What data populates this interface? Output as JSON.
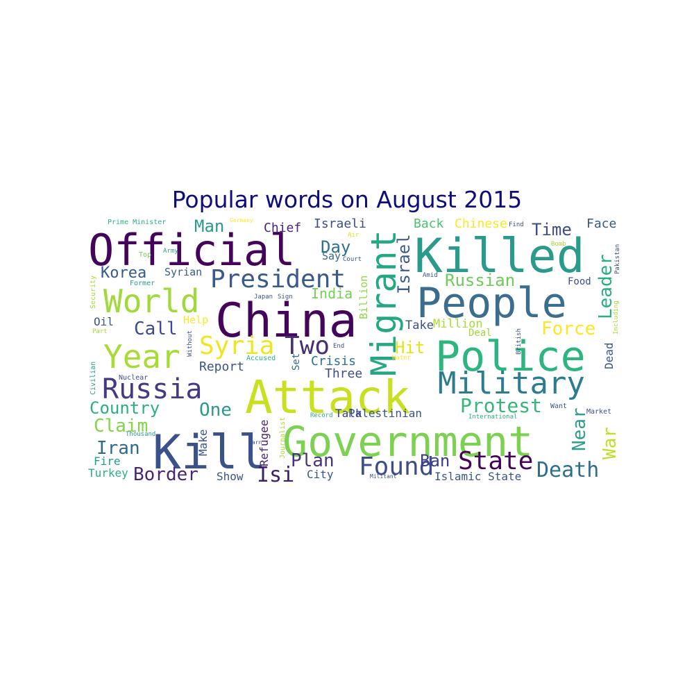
{
  "title": "Popular words on August 2015",
  "words": [
    {
      "text": "Official",
      "color": "#44045a"
    },
    {
      "text": "Killed",
      "color": "#2a9a8a"
    },
    {
      "text": "China",
      "color": "#44045a"
    },
    {
      "text": "People",
      "color": "#3b6e8e"
    },
    {
      "text": "Police",
      "color": "#2cb57f"
    },
    {
      "text": "Attack",
      "color": "#c9e020"
    },
    {
      "text": "Government",
      "color": "#7cd250"
    },
    {
      "text": "Kill",
      "color": "#3b518b"
    },
    {
      "text": "Migrant",
      "color": "#24a884"
    },
    {
      "text": "Military",
      "color": "#2b7c8e"
    },
    {
      "text": "World",
      "color": "#9fda3a"
    },
    {
      "text": "Year",
      "color": "#a8db34"
    },
    {
      "text": "Russia",
      "color": "#443983"
    },
    {
      "text": "President",
      "color": "#3b5a8c"
    },
    {
      "text": "Syria",
      "color": "#f2e51d"
    },
    {
      "text": "Two",
      "color": "#472e7c"
    },
    {
      "text": "State",
      "color": "#44045a"
    },
    {
      "text": "Found",
      "color": "#3e4c8a"
    },
    {
      "text": "Death",
      "color": "#2e6e8e"
    },
    {
      "text": "Country",
      "color": "#2ab07f"
    },
    {
      "text": "Leader",
      "color": "#28ae80"
    },
    {
      "text": "Force",
      "color": "#fde725"
    },
    {
      "text": "Protest",
      "color": "#35b779"
    },
    {
      "text": "Border",
      "color": "#482677"
    },
    {
      "text": "Israel",
      "color": "#3b5b8c"
    },
    {
      "text": "Russian",
      "color": "#6ccd5a"
    },
    {
      "text": "War",
      "color": "#c0df25"
    },
    {
      "text": "Near",
      "color": "#2e9e8a"
    },
    {
      "text": "Claim",
      "color": "#85d44a"
    },
    {
      "text": "Iran",
      "color": "#31688e"
    },
    {
      "text": "Korea",
      "color": "#375a8c"
    },
    {
      "text": "Call",
      "color": "#3e4a89"
    },
    {
      "text": "Isi",
      "color": "#3b1f6a"
    },
    {
      "text": "Plan",
      "color": "#46337f"
    },
    {
      "text": "Ban",
      "color": "#3b3d85"
    },
    {
      "text": "One",
      "color": "#2a9a8a"
    },
    {
      "text": "Day",
      "color": "#2c728e"
    },
    {
      "text": "Time",
      "color": "#3e4a89"
    },
    {
      "text": "Man",
      "color": "#2a9a8a"
    },
    {
      "text": "Hit",
      "color": "#e5e419"
    },
    {
      "text": "Crisis",
      "color": "#2d718e"
    },
    {
      "text": "India",
      "color": "#75d054"
    },
    {
      "text": "Report",
      "color": "#3b528b"
    },
    {
      "text": "Three",
      "color": "#3e4a89"
    },
    {
      "text": "Dead",
      "color": "#3a548c"
    },
    {
      "text": "Israeli",
      "color": "#3e4c8a"
    },
    {
      "text": "Chief",
      "color": "#46247a"
    },
    {
      "text": "Back",
      "color": "#4ac16d"
    },
    {
      "text": "Chinese",
      "color": "#fde725"
    },
    {
      "text": "Face",
      "color": "#39568c"
    },
    {
      "text": "Million",
      "color": "#a8db34"
    },
    {
      "text": "Take",
      "color": "#3e4c8a"
    },
    {
      "text": "Palestinian",
      "color": "#3b528b"
    },
    {
      "text": "Talk",
      "color": "#3b3d85"
    },
    {
      "text": "Islamic State",
      "color": "#3a548c"
    },
    {
      "text": "Show",
      "color": "#3b528b"
    },
    {
      "text": "City",
      "color": "#39568c"
    },
    {
      "text": "Turkey",
      "color": "#2ab07f"
    },
    {
      "text": "Fire",
      "color": "#1f9e89"
    },
    {
      "text": "Oil",
      "color": "#3b528b"
    },
    {
      "text": "Say",
      "color": "#31688e"
    },
    {
      "text": "Help",
      "color": "#fde725"
    },
    {
      "text": "Food",
      "color": "#3e4c8a"
    },
    {
      "text": "Deal",
      "color": "#a0da39"
    },
    {
      "text": "Syrian",
      "color": "#3b5a8c"
    },
    {
      "text": "Billion",
      "color": "#8fd744"
    },
    {
      "text": "Refugee",
      "color": "#482475"
    },
    {
      "text": "Make",
      "color": "#3b528b"
    },
    {
      "text": "Set",
      "color": "#31688e"
    },
    {
      "text": "Prime Minister",
      "color": "#2ab07f"
    },
    {
      "text": "Top",
      "color": "#6ccd5a"
    },
    {
      "text": "Army",
      "color": "#2a9a8a"
    },
    {
      "text": "Former",
      "color": "#2a9a8a"
    },
    {
      "text": "Security",
      "color": "#a8db34"
    },
    {
      "text": "Part",
      "color": "#a8db34"
    },
    {
      "text": "Germany",
      "color": "#fde725"
    },
    {
      "text": "Air",
      "color": "#dde318"
    },
    {
      "text": "Court",
      "color": "#3b528b"
    },
    {
      "text": "Bomb",
      "color": "#a8db34"
    },
    {
      "text": "Find",
      "color": "#3e4c8a"
    },
    {
      "text": "Amid",
      "color": "#3b528b"
    },
    {
      "text": "Pakistan",
      "color": "#3e4c8a"
    },
    {
      "text": "Including",
      "color": "#a8db34"
    },
    {
      "text": "British",
      "color": "#3b528b"
    },
    {
      "text": "Water",
      "color": "#fde725"
    },
    {
      "text": "Accused",
      "color": "#2ab07f"
    },
    {
      "text": "End",
      "color": "#3b528b"
    },
    {
      "text": "Japan",
      "color": "#3b528b"
    },
    {
      "text": "Sign",
      "color": "#3b528b"
    },
    {
      "text": "Without",
      "color": "#3b528b"
    },
    {
      "text": "Nuclear",
      "color": "#3e4a89"
    },
    {
      "text": "Civilian",
      "color": "#2a9a8a"
    },
    {
      "text": "Thousand",
      "color": "#2a9a8a"
    },
    {
      "text": "Warn",
      "color": "#3b528b"
    },
    {
      "text": "Journalist",
      "color": "#a8db34"
    },
    {
      "text": "Record",
      "color": "#2ab07f"
    },
    {
      "text": "International",
      "color": "#2ab07f"
    },
    {
      "text": "Want",
      "color": "#3b528b"
    },
    {
      "text": "Market",
      "color": "#3e4c8a"
    },
    {
      "text": "Militant",
      "color": "#3b528b"
    }
  ]
}
